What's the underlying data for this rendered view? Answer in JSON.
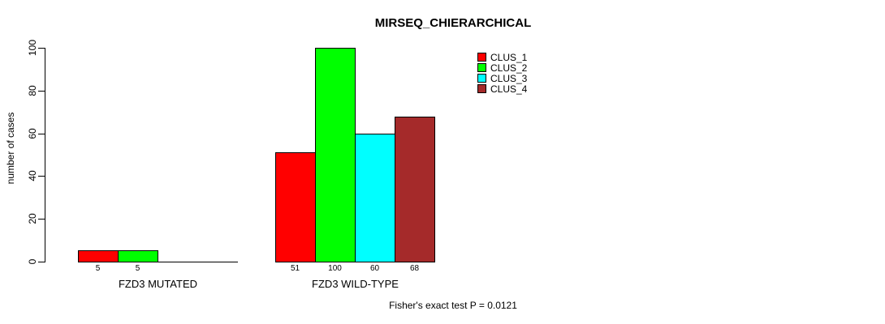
{
  "chart_data": {
    "type": "bar",
    "title": "MIRSEQ_CHIERARCHICAL",
    "ylabel": "number of cases",
    "xlabel": "",
    "ylim": [
      0,
      100
    ],
    "yticks": [
      0,
      20,
      40,
      60,
      80,
      100
    ],
    "grid": false,
    "legend_position": "top-right",
    "categories": [
      "FZD3 MUTATED",
      "FZD3 WILD-TYPE"
    ],
    "series": [
      {
        "name": "CLUS_1",
        "color": "#ff0000",
        "values": [
          5,
          51
        ]
      },
      {
        "name": "CLUS_2",
        "color": "#00ff00",
        "values": [
          5,
          100
        ]
      },
      {
        "name": "CLUS_3",
        "color": "#00ffff",
        "values": [
          0,
          60
        ]
      },
      {
        "name": "CLUS_4",
        "color": "#a52a2a",
        "values": [
          0,
          68
        ]
      }
    ],
    "bar_value_labels": [
      [
        "5",
        "5",
        "",
        ""
      ],
      [
        "51",
        "100",
        "60",
        "68"
      ]
    ],
    "footnote": "Fisher's exact test P = 0.0121"
  }
}
